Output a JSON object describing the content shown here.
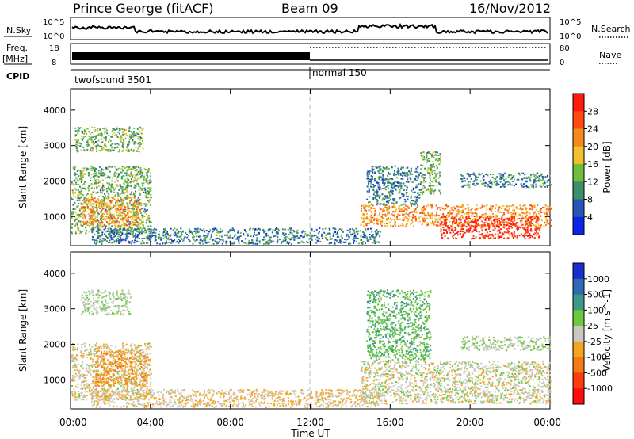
{
  "header": {
    "station": "Prince George (fitACF)",
    "beam": "Beam 09",
    "date": "16/Nov/2012"
  },
  "strip_labels": {
    "nsky": "N.Sky",
    "nsky_ticks": [
      "10^5",
      "10^0"
    ],
    "nsearch": "N.Search",
    "nsearch_ticks": [
      "10^5",
      "10^0"
    ],
    "freq": "Freq.",
    "freq_unit": "[MHz]",
    "freq_ticks": [
      "18",
      "8"
    ],
    "nave": "Nave",
    "nave_ticks": [
      "80",
      "0"
    ],
    "cpid": "CPID",
    "cpid_segments": [
      "twofsound 3501",
      "normal 150"
    ]
  },
  "axes": {
    "x_ticks": [
      "00:00",
      "04:00",
      "08:00",
      "12:00",
      "16:00",
      "20:00",
      "00:00"
    ],
    "x_label": "Time UT",
    "y_label": "Slant Range [km]",
    "y_ticks": [
      "1000",
      "2000",
      "3000",
      "4000"
    ]
  },
  "colorbars": {
    "power": {
      "label": "Power [dB]",
      "ticks": [
        "4",
        "8",
        "12",
        "16",
        "20",
        "24",
        "28"
      ],
      "colors": [
        "#0b24e8",
        "#2656b5",
        "#3d8f6a",
        "#6bbf3c",
        "#f2c02a",
        "#f48a1a",
        "#ff4a12",
        "#ff1a0a"
      ]
    },
    "velocity": {
      "label": "Velocity [m s^-1]",
      "ticks": [
        "1000",
        "500",
        "100",
        "25",
        "-25",
        "-100",
        "-500",
        "-1000"
      ],
      "colors": [
        "#1a2fcf",
        "#2f6ab5",
        "#3a9a86",
        "#6cc93c",
        "#c8c8c0",
        "#f4a51f",
        "#f47a16",
        "#ff3b12",
        "#ff0d0d"
      ]
    }
  },
  "chart_data": [
    {
      "type": "heatmap",
      "title": "Power",
      "xlabel": "Time UT",
      "ylabel": "Slant Range [km]",
      "xlim": [
        0,
        24
      ],
      "ylim": [
        180,
        4600
      ],
      "colorbar_range": [
        0,
        30
      ],
      "series": [
        {
          "time_range": [
            0.0,
            4.0
          ],
          "range_km": [
            500,
            2400
          ],
          "value_db": 12
        },
        {
          "time_range": [
            0.5,
            3.5
          ],
          "range_km": [
            700,
            1500
          ],
          "value_db": 20
        },
        {
          "time_range": [
            0.2,
            3.6
          ],
          "range_km": [
            2800,
            3500
          ],
          "value_db": 12
        },
        {
          "time_range": [
            1.0,
            15.5
          ],
          "range_km": [
            200,
            650
          ],
          "value_db": 8
        },
        {
          "time_range": [
            14.5,
            24.0
          ],
          "range_km": [
            700,
            1300
          ],
          "value_db": 20
        },
        {
          "time_range": [
            14.8,
            17.5
          ],
          "range_km": [
            1300,
            2400
          ],
          "value_db": 8
        },
        {
          "time_range": [
            18.5,
            23.5
          ],
          "range_km": [
            350,
            1000
          ],
          "value_db": 28
        },
        {
          "time_range": [
            17.5,
            18.5
          ],
          "range_km": [
            1600,
            2800
          ],
          "value_db": 12
        },
        {
          "time_range": [
            19.5,
            24.0
          ],
          "range_km": [
            1800,
            2200
          ],
          "value_db": 8
        }
      ]
    },
    {
      "type": "heatmap",
      "title": "Velocity",
      "xlabel": "Time UT",
      "ylabel": "Slant Range [km]",
      "xlim": [
        0,
        24
      ],
      "ylim": [
        180,
        4600
      ],
      "colorbar_range": [
        -1000,
        1000
      ],
      "series": [
        {
          "time_range": [
            0.0,
            4.0
          ],
          "range_km": [
            400,
            2000
          ],
          "value_ms": -50
        },
        {
          "time_range": [
            1.2,
            3.8
          ],
          "range_km": [
            800,
            1800
          ],
          "value_ms": -300
        },
        {
          "time_range": [
            0.5,
            3.0
          ],
          "range_km": [
            2800,
            3500
          ],
          "value_ms": 100
        },
        {
          "time_range": [
            1.0,
            15.5
          ],
          "range_km": [
            200,
            700
          ],
          "value_ms": -100
        },
        {
          "time_range": [
            14.5,
            24.0
          ],
          "range_km": [
            300,
            1500
          ],
          "value_ms": 0
        },
        {
          "time_range": [
            14.8,
            18.0
          ],
          "range_km": [
            1500,
            3500
          ],
          "value_ms": 300
        },
        {
          "time_range": [
            19.5,
            24.0
          ],
          "range_km": [
            1800,
            2200
          ],
          "value_ms": 100
        }
      ]
    }
  ]
}
